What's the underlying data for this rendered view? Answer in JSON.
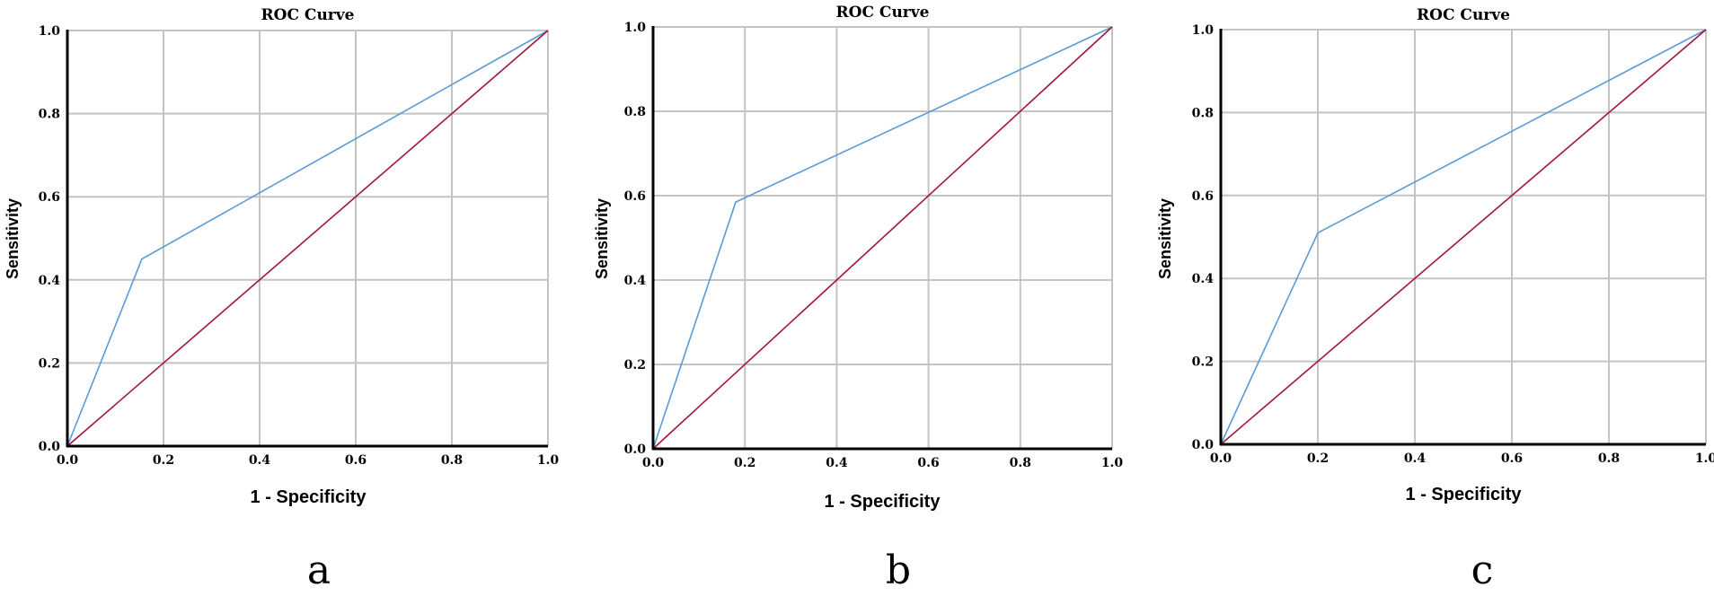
{
  "chart_data": [
    {
      "type": "line",
      "title": "ROC Curve",
      "xlabel": "1 - Specificity",
      "ylabel": "Sensitivity",
      "xlim": [
        0.0,
        1.0
      ],
      "ylim": [
        0.0,
        1.0
      ],
      "xticks": [
        "0.0",
        "0.2",
        "0.4",
        "0.6",
        "0.8",
        "1.0"
      ],
      "yticks": [
        "0.0",
        "0.2",
        "0.4",
        "0.6",
        "0.8",
        "1.0"
      ],
      "grid": true,
      "panel_label": "a",
      "series": [
        {
          "color": "#5b9bd5",
          "points": [
            [
              0.0,
              0.0
            ],
            [
              0.155,
              0.45
            ],
            [
              1.0,
              1.0
            ]
          ]
        },
        {
          "color": "#a0163c",
          "points": [
            [
              0.0,
              0.0
            ],
            [
              1.0,
              1.0
            ]
          ]
        }
      ]
    },
    {
      "type": "line",
      "title": "ROC Curve",
      "xlabel": "1 - Specificity",
      "ylabel": "Sensitivity",
      "xlim": [
        0.0,
        1.0
      ],
      "ylim": [
        0.0,
        1.0
      ],
      "xticks": [
        "0.0",
        "0.2",
        "0.4",
        "0.6",
        "0.8",
        "1.0"
      ],
      "yticks": [
        "0.0",
        "0.2",
        "0.4",
        "0.6",
        "0.8",
        "1.0"
      ],
      "grid": true,
      "panel_label": "b",
      "series": [
        {
          "color": "#5b9bd5",
          "points": [
            [
              0.0,
              0.0
            ],
            [
              0.18,
              0.585
            ],
            [
              1.0,
              1.0
            ]
          ]
        },
        {
          "color": "#a0163c",
          "points": [
            [
              0.0,
              0.0
            ],
            [
              1.0,
              1.0
            ]
          ]
        }
      ]
    },
    {
      "type": "line",
      "title": "ROC Curve",
      "xlabel": "1 - Specificity",
      "ylabel": "Sensitivity",
      "xlim": [
        0.0,
        1.0
      ],
      "ylim": [
        0.0,
        1.0
      ],
      "xticks": [
        "0.0",
        "0.2",
        "0.4",
        "0.6",
        "0.8",
        "1.0"
      ],
      "yticks": [
        "0.0",
        "0.2",
        "0.4",
        "0.6",
        "0.8",
        "1.0"
      ],
      "grid": true,
      "panel_label": "c",
      "series": [
        {
          "color": "#5b9bd5",
          "points": [
            [
              0.0,
              0.0
            ],
            [
              0.2,
              0.51
            ],
            [
              1.0,
              1.0
            ]
          ]
        },
        {
          "color": "#a0163c",
          "points": [
            [
              0.0,
              0.0
            ],
            [
              1.0,
              1.0
            ]
          ]
        }
      ]
    }
  ]
}
